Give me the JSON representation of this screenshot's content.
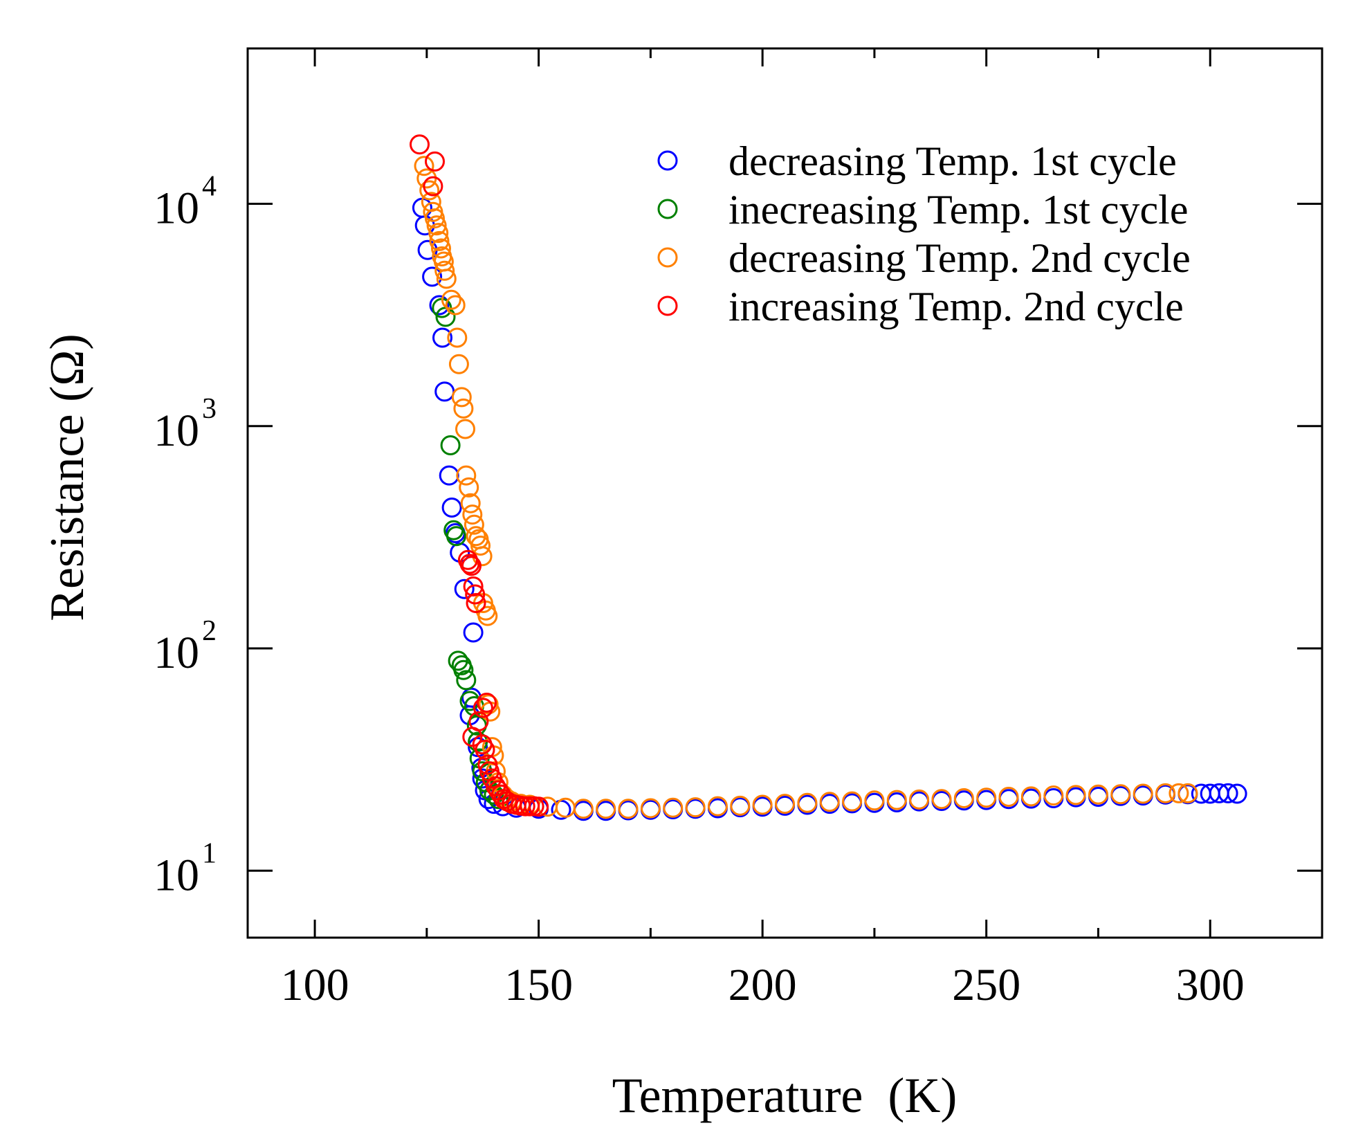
{
  "chart_data": {
    "type": "scatter",
    "title": "",
    "xlabel": "Temperature  (K)",
    "ylabel": "Resistance (Ω)",
    "xlim": [
      85,
      325
    ],
    "ylim": [
      5,
      50000
    ],
    "yscale": "log",
    "grid": false,
    "legend_position": "top-right",
    "x_ticks": [
      {
        "value": 100,
        "label": "100"
      },
      {
        "value": 150,
        "label": "150"
      },
      {
        "value": 200,
        "label": "200"
      },
      {
        "value": 250,
        "label": "250"
      },
      {
        "value": 300,
        "label": "300"
      }
    ],
    "y_ticks": [
      {
        "value": 10,
        "base": "10",
        "exp": "1"
      },
      {
        "value": 100,
        "base": "10",
        "exp": "2"
      },
      {
        "value": 1000,
        "base": "10",
        "exp": "3"
      },
      {
        "value": 10000,
        "base": "10",
        "exp": "4"
      }
    ],
    "series": [
      {
        "name": "decreasing Temp. 1st cycle",
        "color": "#0000ff",
        "points": [
          [
            124,
            9600
          ],
          [
            124.6,
            8000
          ],
          [
            125.2,
            6200
          ],
          [
            126.2,
            4700
          ],
          [
            127.8,
            3500
          ],
          [
            128.5,
            2500
          ],
          [
            129,
            1430
          ],
          [
            130,
            600
          ],
          [
            130.6,
            430
          ],
          [
            131.4,
            330
          ],
          [
            132.4,
            270
          ],
          [
            133.4,
            185
          ],
          [
            135.4,
            118
          ],
          [
            135,
            60
          ],
          [
            134.6,
            50
          ],
          [
            136.4,
            36
          ],
          [
            137.2,
            29
          ],
          [
            137.4,
            26
          ],
          [
            138,
            23
          ],
          [
            138.8,
            21
          ],
          [
            140,
            20
          ],
          [
            142,
            19.5
          ],
          [
            145,
            19.2
          ],
          [
            150,
            19
          ],
          [
            155,
            18.8
          ],
          [
            160,
            18.6
          ],
          [
            165,
            18.6
          ],
          [
            170,
            18.7
          ],
          [
            175,
            18.8
          ],
          [
            180,
            18.9
          ],
          [
            185,
            19
          ],
          [
            190,
            19.1
          ],
          [
            195,
            19.3
          ],
          [
            200,
            19.4
          ],
          [
            205,
            19.6
          ],
          [
            210,
            19.8
          ],
          [
            215,
            20
          ],
          [
            220,
            20.1
          ],
          [
            225,
            20.2
          ],
          [
            230,
            20.3
          ],
          [
            235,
            20.5
          ],
          [
            240,
            20.6
          ],
          [
            245,
            20.7
          ],
          [
            250,
            20.8
          ],
          [
            255,
            21
          ],
          [
            260,
            21.1
          ],
          [
            265,
            21.2
          ],
          [
            270,
            21.4
          ],
          [
            275,
            21.5
          ],
          [
            280,
            21.7
          ],
          [
            285,
            21.8
          ],
          [
            290,
            22
          ],
          [
            295,
            22.1
          ],
          [
            298,
            22.2
          ],
          [
            300,
            22.2
          ],
          [
            302,
            22.3
          ],
          [
            304,
            22.3
          ],
          [
            306,
            22.2
          ]
        ]
      },
      {
        "name": "inecreasing Temp. 1st cycle",
        "color": "#008000",
        "points": [
          [
            128.4,
            3400
          ],
          [
            129.2,
            3100
          ],
          [
            130.3,
            820
          ],
          [
            131,
            340
          ],
          [
            131.6,
            320
          ],
          [
            132,
            88
          ],
          [
            132.8,
            84
          ],
          [
            133.2,
            80
          ],
          [
            133.8,
            72
          ],
          [
            134.6,
            58
          ],
          [
            135.6,
            55
          ],
          [
            136.2,
            45
          ],
          [
            136.4,
            38
          ],
          [
            136.8,
            32
          ],
          [
            137.4,
            28
          ],
          [
            138.2,
            25
          ],
          [
            139,
            23
          ],
          [
            140,
            22
          ],
          [
            141,
            21
          ]
        ]
      },
      {
        "name": "decreasing Temp. 2nd cycle",
        "color": "#ff8000",
        "points": [
          [
            124.4,
            14800
          ],
          [
            125,
            13000
          ],
          [
            125.6,
            11500
          ],
          [
            126,
            10200
          ],
          [
            126.4,
            9200
          ],
          [
            126.8,
            8600
          ],
          [
            127.2,
            8000
          ],
          [
            127.6,
            7400
          ],
          [
            127.8,
            6800
          ],
          [
            128.2,
            6300
          ],
          [
            128.4,
            5800
          ],
          [
            128.8,
            5500
          ],
          [
            129,
            5000
          ],
          [
            129.4,
            4600
          ],
          [
            130.5,
            3700
          ],
          [
            131.4,
            3500
          ],
          [
            131.8,
            2500
          ],
          [
            132.2,
            1900
          ],
          [
            132.8,
            1350
          ],
          [
            133.2,
            1200
          ],
          [
            133.6,
            970
          ],
          [
            133.8,
            600
          ],
          [
            134.4,
            530
          ],
          [
            134.8,
            450
          ],
          [
            135.2,
            400
          ],
          [
            135.6,
            360
          ],
          [
            136,
            320
          ],
          [
            136.6,
            310
          ],
          [
            137,
            290
          ],
          [
            137.4,
            260
          ],
          [
            137.6,
            160
          ],
          [
            138.2,
            148
          ],
          [
            138.6,
            140
          ],
          [
            138.8,
            56
          ],
          [
            139.2,
            52
          ],
          [
            139.6,
            36
          ],
          [
            140,
            33
          ],
          [
            140.4,
            28
          ],
          [
            141,
            25
          ],
          [
            142,
            22
          ],
          [
            143,
            21
          ],
          [
            144,
            20.5
          ],
          [
            146,
            20
          ],
          [
            148,
            19.8
          ],
          [
            152,
            19.4
          ],
          [
            156,
            19.2
          ],
          [
            160,
            19
          ],
          [
            165,
            19
          ],
          [
            170,
            19
          ],
          [
            175,
            19.1
          ],
          [
            180,
            19.2
          ],
          [
            185,
            19.3
          ],
          [
            190,
            19.5
          ],
          [
            195,
            19.6
          ],
          [
            200,
            19.8
          ],
          [
            205,
            20
          ],
          [
            210,
            20.2
          ],
          [
            215,
            20.4
          ],
          [
            220,
            20.5
          ],
          [
            225,
            20.7
          ],
          [
            230,
            20.8
          ],
          [
            235,
            20.9
          ],
          [
            240,
            21
          ],
          [
            245,
            21.2
          ],
          [
            250,
            21.3
          ],
          [
            255,
            21.5
          ],
          [
            260,
            21.6
          ],
          [
            265,
            21.8
          ],
          [
            270,
            21.9
          ],
          [
            275,
            22
          ],
          [
            280,
            22.1
          ],
          [
            285,
            22.2
          ],
          [
            290,
            22.3
          ],
          [
            293,
            22.3
          ],
          [
            295,
            22.3
          ]
        ]
      },
      {
        "name": "increasing Temp. 2nd cycle",
        "color": "#ff0000",
        "points": [
          [
            123.4,
            18500
          ],
          [
            126.8,
            15500
          ],
          [
            126.4,
            12000
          ],
          [
            134.2,
            250
          ],
          [
            134.6,
            240
          ],
          [
            135,
            235
          ],
          [
            135.4,
            190
          ],
          [
            135.8,
            175
          ],
          [
            136,
            160
          ],
          [
            138.4,
            57
          ],
          [
            137.6,
            54
          ],
          [
            136.6,
            47
          ],
          [
            135.2,
            40
          ],
          [
            137.4,
            37
          ],
          [
            138,
            35
          ],
          [
            138.6,
            30
          ],
          [
            139,
            28
          ],
          [
            139.6,
            26
          ],
          [
            140.4,
            24
          ],
          [
            141,
            23
          ],
          [
            141.6,
            22
          ],
          [
            142.2,
            21
          ],
          [
            143,
            20.5
          ],
          [
            144,
            20
          ],
          [
            145,
            19.8
          ],
          [
            146,
            19.6
          ],
          [
            147,
            19.5
          ],
          [
            148,
            19.5
          ],
          [
            149,
            19.5
          ],
          [
            150,
            19.4
          ]
        ]
      }
    ]
  }
}
